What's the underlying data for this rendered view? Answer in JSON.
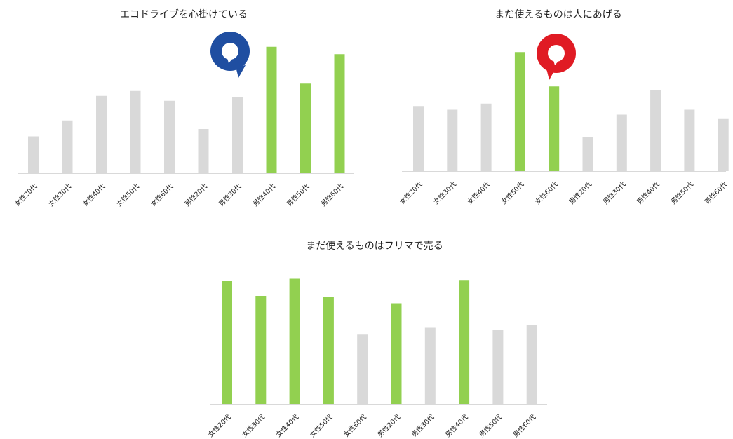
{
  "colors": {
    "highlight": "#92d050",
    "normal": "#d9d9d9",
    "axis": "#d9d9d9",
    "badge_male": "#1f4ea1",
    "badge_female": "#e01b24"
  },
  "chart_data": [
    {
      "type": "bar",
      "title": "エコドライブを心掛けている",
      "categories": [
        "女性20代",
        "女性30代",
        "女性40代",
        "女性50代",
        "女性60代",
        "男性20代",
        "男性30代",
        "男性40代",
        "男性50代",
        "男性60代"
      ],
      "values": [
        30,
        43,
        63,
        67,
        59,
        36,
        62,
        103,
        73,
        97
      ],
      "highlight": [
        false,
        false,
        false,
        false,
        false,
        false,
        false,
        true,
        true,
        true
      ],
      "badge": {
        "icon": "male-speech-badge-icon",
        "color": "#1f4ea1"
      },
      "grid": false,
      "legend": "none"
    },
    {
      "type": "bar",
      "title": "まだ使えるものは人にあげる",
      "categories": [
        "女性20代",
        "女性30代",
        "女性40代",
        "女性50代",
        "女性60代",
        "男性20代",
        "男性30代",
        "男性40代",
        "男性50代",
        "男性60代"
      ],
      "values": [
        53,
        50,
        55,
        97,
        69,
        28,
        46,
        66,
        50,
        43
      ],
      "highlight": [
        false,
        false,
        false,
        true,
        true,
        false,
        false,
        false,
        false,
        false
      ],
      "badge": {
        "icon": "female-speech-badge-icon",
        "color": "#e01b24"
      },
      "grid": false,
      "legend": "none"
    },
    {
      "type": "bar",
      "title": "まだ使えるものはフリマで売る",
      "categories": [
        "女性20代",
        "女性30代",
        "女性40代",
        "女性50代",
        "女性60代",
        "男性20代",
        "男性30代",
        "男性40代",
        "男性50代",
        "男性60代"
      ],
      "values": [
        100,
        88,
        102,
        87,
        57,
        82,
        62,
        101,
        60,
        64
      ],
      "highlight": [
        true,
        true,
        true,
        true,
        false,
        true,
        false,
        true,
        false,
        false
      ],
      "grid": false,
      "legend": "none"
    }
  ]
}
